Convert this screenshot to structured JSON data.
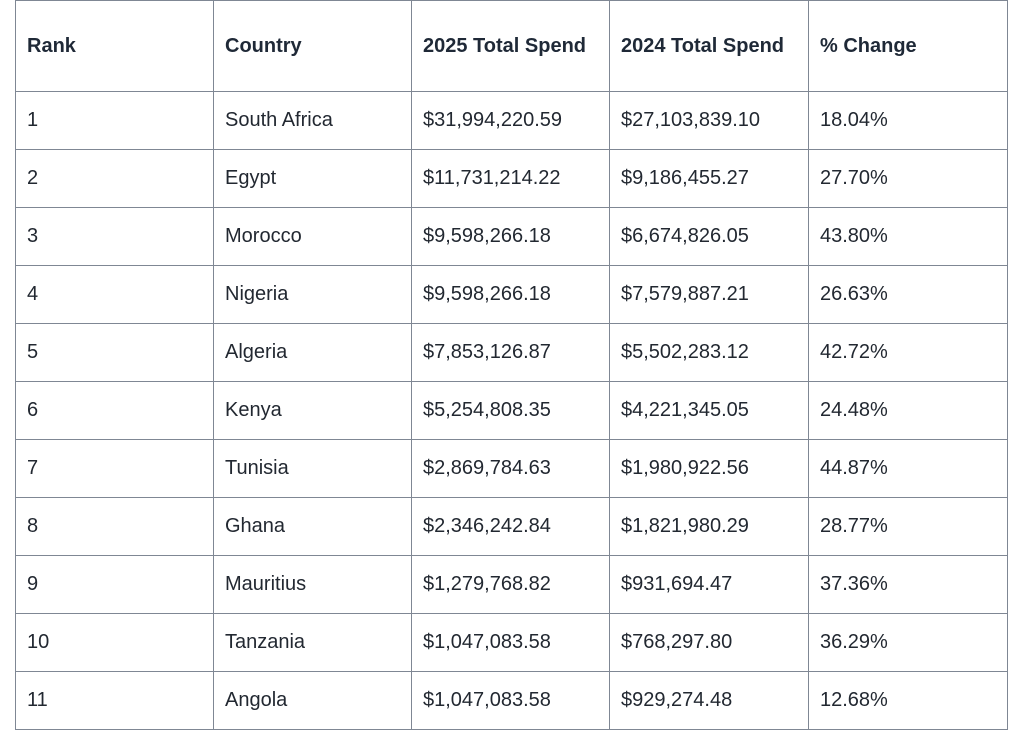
{
  "table": {
    "headers": [
      "Rank",
      "Country",
      "2025 Total Spend",
      "2024 Total Spend",
      "% Change"
    ],
    "rows": [
      [
        "1",
        "South Africa",
        "$31,994,220.59",
        "$27,103,839.10",
        "18.04%"
      ],
      [
        "2",
        "Egypt",
        "$11,731,214.22",
        "$9,186,455.27",
        "27.70%"
      ],
      [
        "3",
        "Morocco",
        "$9,598,266.18",
        "$6,674,826.05",
        "43.80%"
      ],
      [
        "4",
        "Nigeria",
        "$9,598,266.18",
        "$7,579,887.21",
        "26.63%"
      ],
      [
        "5",
        "Algeria",
        "$7,853,126.87",
        "$5,502,283.12",
        "42.72%"
      ],
      [
        "6",
        "Kenya",
        "$5,254,808.35",
        "$4,221,345.05",
        "24.48%"
      ],
      [
        "7",
        "Tunisia",
        "$2,869,784.63",
        "$1,980,922.56",
        "44.87%"
      ],
      [
        "8",
        "Ghana",
        "$2,346,242.84",
        "$1,821,980.29",
        "28.77%"
      ],
      [
        "9",
        "Mauritius",
        "$1,279,768.82",
        "$931,694.47",
        "37.36%"
      ],
      [
        "10",
        "Tanzania",
        "$1,047,083.58",
        "$768,297.80",
        "36.29%"
      ],
      [
        "11",
        "Angola",
        "$1,047,083.58",
        "$929,274.48",
        "12.68%"
      ]
    ]
  }
}
